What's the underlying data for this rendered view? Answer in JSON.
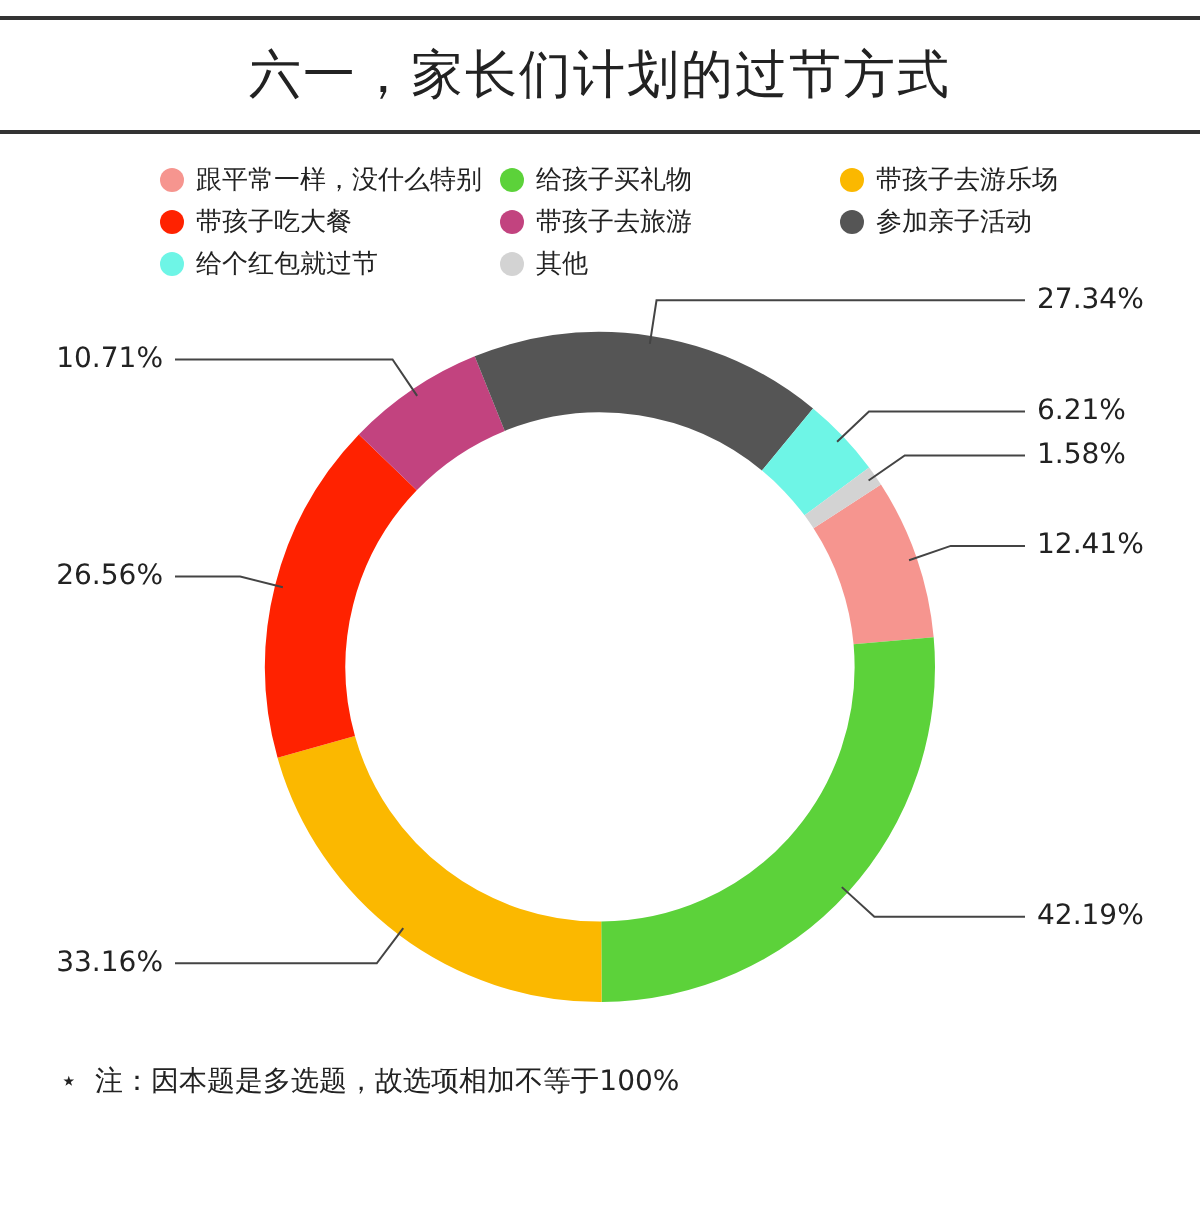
{
  "chart_data": {
    "type": "donut",
    "title": "六一，家长们计划的过节方式",
    "categories": [
      "跟平常一样，没什么特别",
      "给孩子买礼物",
      "带孩子去游乐场",
      "带孩子吃大餐",
      "带孩子去旅游",
      "参加亲子活动",
      "给个红包就过节",
      "其他"
    ],
    "values": [
      12.41,
      42.19,
      33.16,
      26.56,
      10.71,
      27.34,
      6.21,
      1.58
    ],
    "value_labels": [
      "12.41%",
      "42.19%",
      "33.16%",
      "26.56%",
      "10.71%",
      "27.34%",
      "6.21%",
      "1.58%"
    ],
    "colors": [
      "#f6958f",
      "#5cd23a",
      "#fbb800",
      "#ff2200",
      "#c2437f",
      "#555555",
      "#6ef5e6",
      "#d3d3d3"
    ],
    "legend": "top",
    "annotations": [
      "⋆  注：因本题是多选题，故选项相加不等于100%"
    ]
  }
}
